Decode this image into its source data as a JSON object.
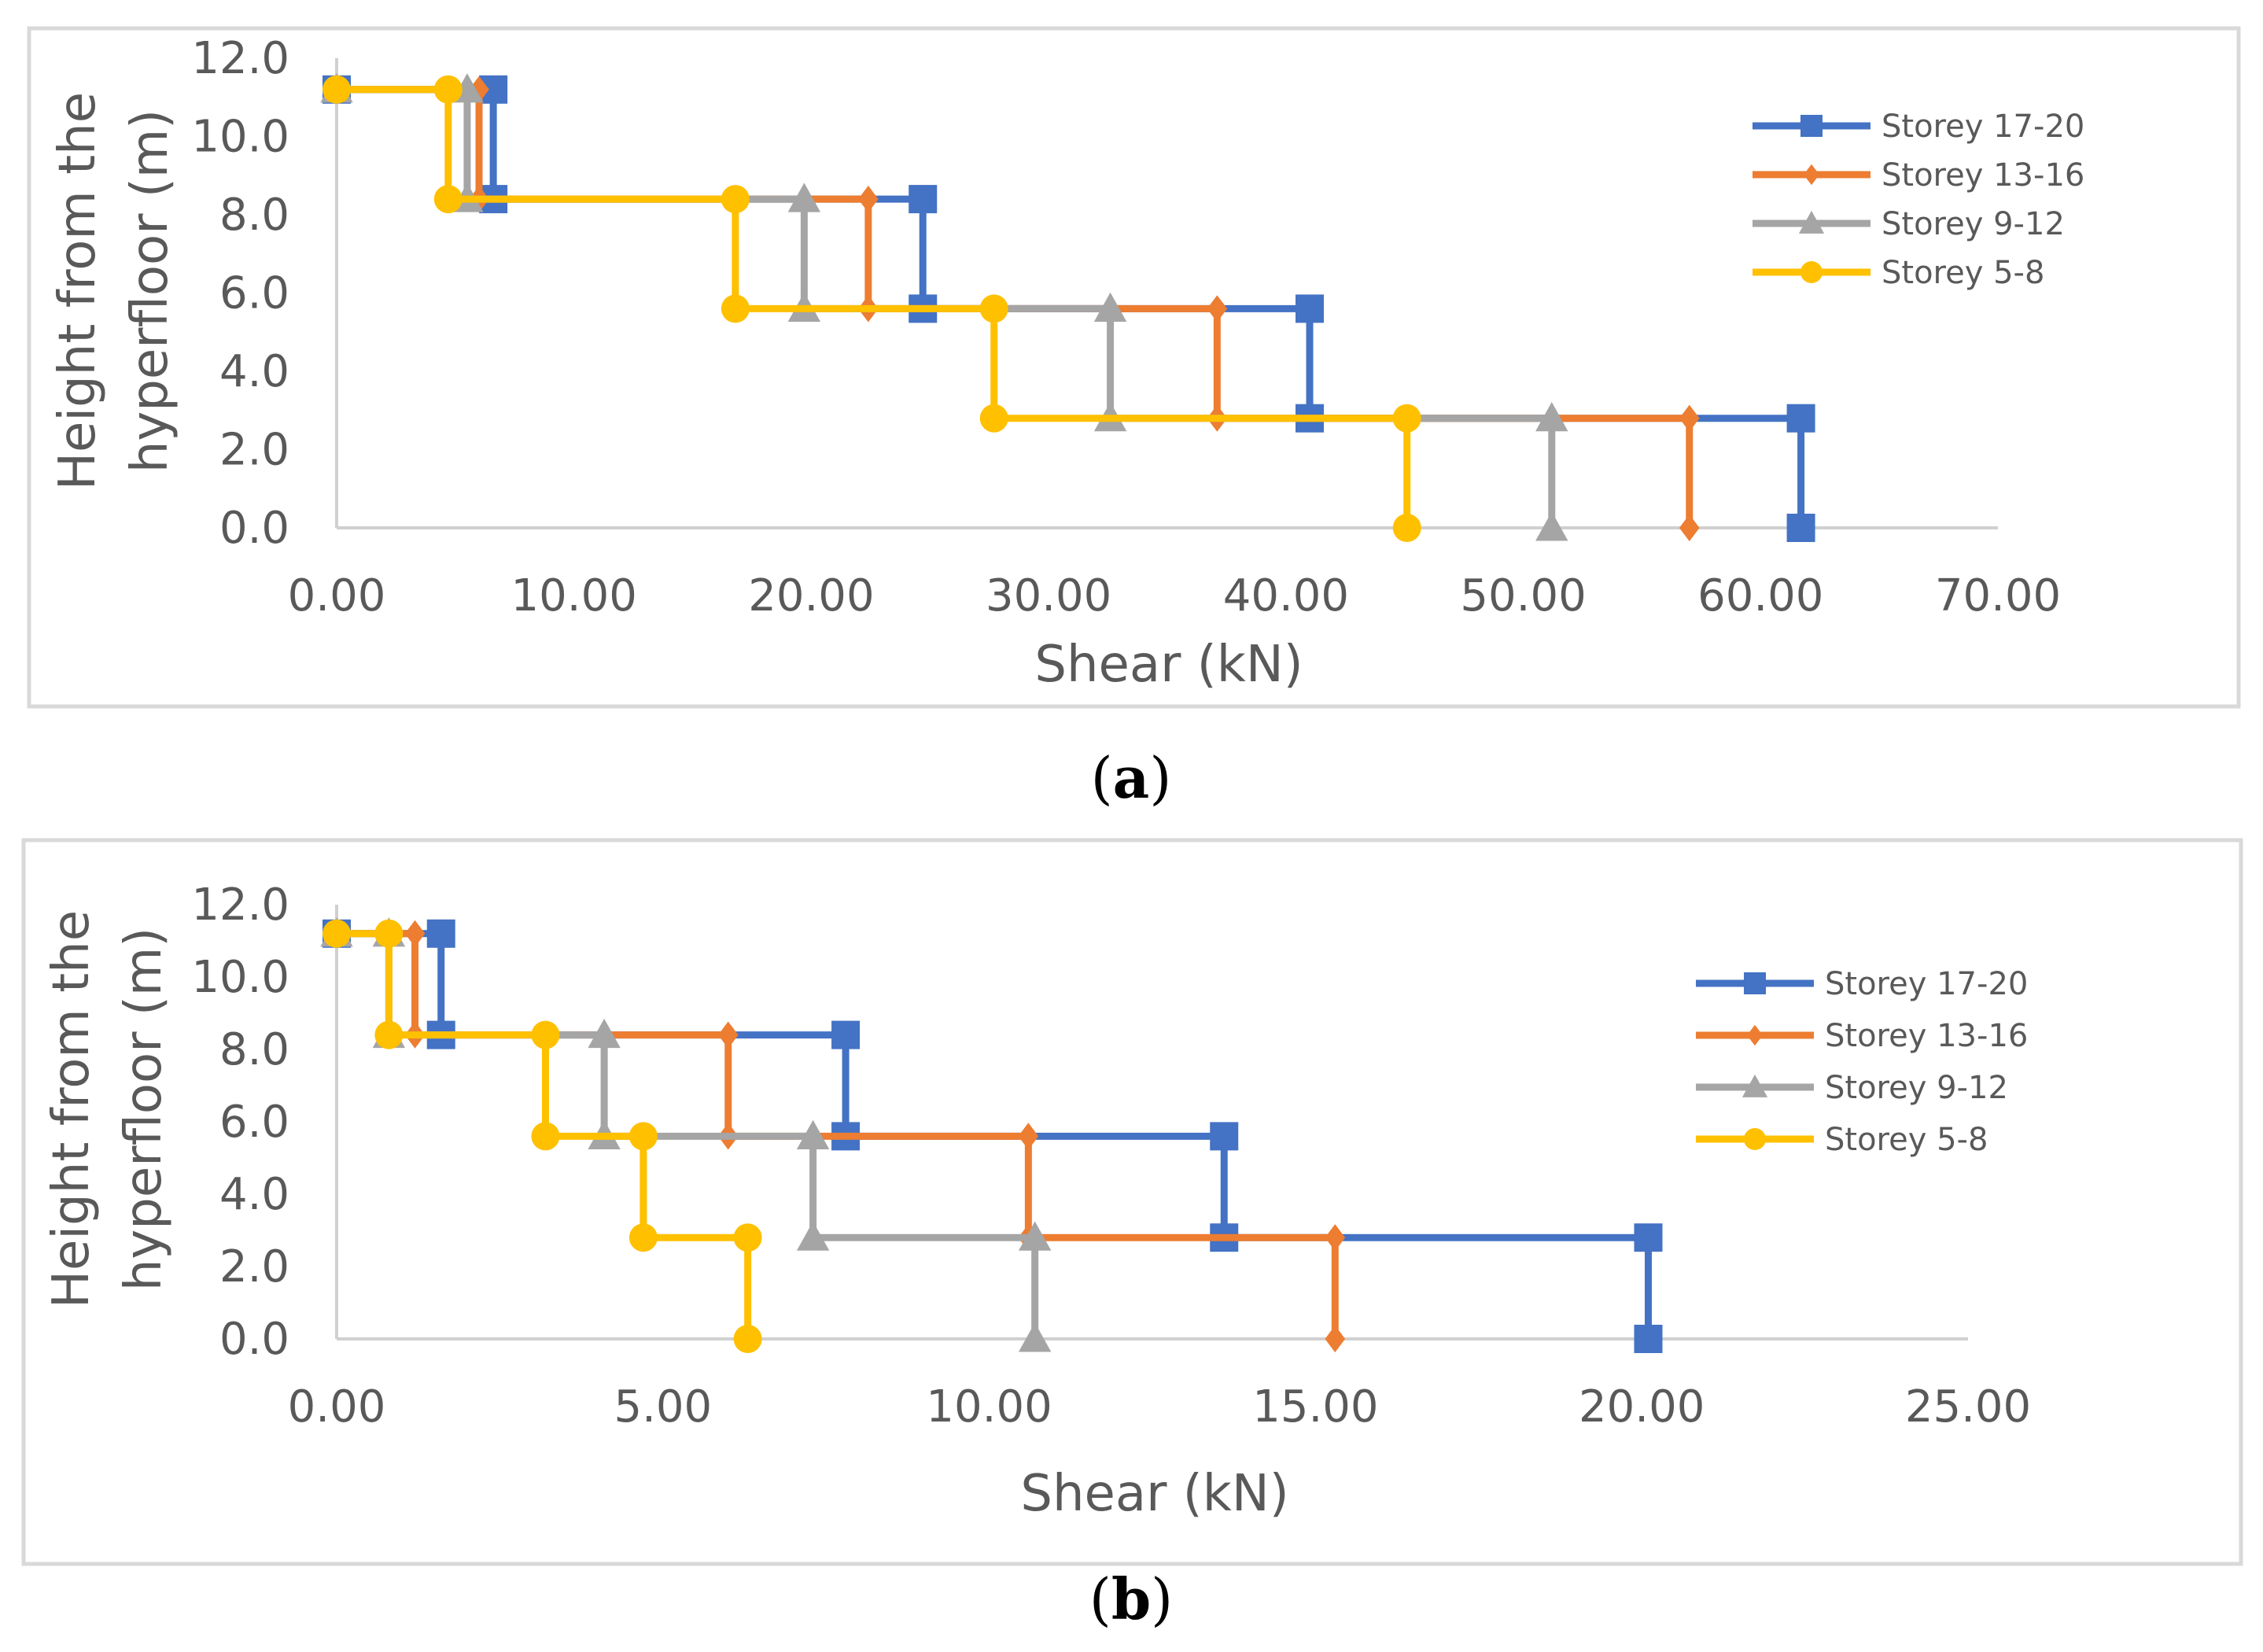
{
  "chart_data": [
    {
      "type": "line",
      "caption": "(a)",
      "caption_letter": "a",
      "xlabel": "Shear (kN)",
      "ylabel_line1": "Height from the",
      "ylabel_line2": "hyperfloor (m)",
      "xlim": [
        0,
        70
      ],
      "ylim": [
        0,
        12
      ],
      "xticks": [
        0,
        10,
        20,
        30,
        40,
        50,
        60,
        70
      ],
      "xtick_labels": [
        "0.00",
        "10.00",
        "20.00",
        "30.00",
        "40.00",
        "50.00",
        "60.00",
        "70.00"
      ],
      "yticks": [
        0,
        2,
        4,
        6,
        8,
        10,
        12
      ],
      "ytick_labels": [
        "0.0",
        "2.0",
        "4.0",
        "6.0",
        "8.0",
        "10.0",
        "12.0"
      ],
      "legend_position": "right",
      "series": [
        {
          "name": "Storey 17-20",
          "color": "#4472c4",
          "marker": "square",
          "points": [
            [
              0,
              11.2
            ],
            [
              6.6,
              11.2
            ],
            [
              6.6,
              8.4
            ],
            [
              24.7,
              8.4
            ],
            [
              24.7,
              5.6
            ],
            [
              41.0,
              5.6
            ],
            [
              41.0,
              2.8
            ],
            [
              61.7,
              2.8
            ],
            [
              61.7,
              0
            ]
          ]
        },
        {
          "name": "Storey 13-16",
          "color": "#ed7d31",
          "marker": "diamond",
          "points": [
            [
              0,
              11.2
            ],
            [
              6.0,
              11.2
            ],
            [
              6.0,
              8.4
            ],
            [
              22.4,
              8.4
            ],
            [
              22.4,
              5.6
            ],
            [
              37.1,
              5.6
            ],
            [
              37.1,
              2.8
            ],
            [
              57.0,
              2.8
            ],
            [
              57.0,
              0
            ]
          ]
        },
        {
          "name": "Storey 9-12",
          "color": "#a5a5a5",
          "marker": "triangle",
          "points": [
            [
              0,
              11.2
            ],
            [
              5.5,
              11.2
            ],
            [
              5.5,
              8.4
            ],
            [
              19.7,
              8.4
            ],
            [
              19.7,
              5.6
            ],
            [
              32.6,
              5.6
            ],
            [
              32.6,
              2.8
            ],
            [
              51.2,
              2.8
            ],
            [
              51.2,
              0
            ]
          ]
        },
        {
          "name": "Storey 5-8",
          "color": "#ffc000",
          "marker": "circle",
          "points": [
            [
              0,
              11.2
            ],
            [
              4.7,
              11.2
            ],
            [
              4.7,
              8.4
            ],
            [
              16.8,
              8.4
            ],
            [
              16.8,
              5.6
            ],
            [
              27.7,
              5.6
            ],
            [
              27.7,
              2.8
            ],
            [
              45.1,
              2.8
            ],
            [
              45.1,
              0
            ]
          ]
        }
      ]
    },
    {
      "type": "line",
      "caption": "(b)",
      "caption_letter": "b",
      "xlabel": "Shear (kN)",
      "ylabel_line1": "Height from the",
      "ylabel_line2": "hyperfloor (m)",
      "xlim": [
        0,
        25
      ],
      "ylim": [
        0,
        12
      ],
      "xticks": [
        0,
        5,
        10,
        15,
        20,
        25
      ],
      "xtick_labels": [
        "0.00",
        "5.00",
        "10.00",
        "15.00",
        "20.00",
        "25.00"
      ],
      "yticks": [
        0,
        2,
        4,
        6,
        8,
        10,
        12
      ],
      "ytick_labels": [
        "0.0",
        "2.0",
        "4.0",
        "6.0",
        "8.0",
        "10.0",
        "12.0"
      ],
      "legend_position": "right",
      "series": [
        {
          "name": "Storey 17-20",
          "color": "#4472c4",
          "marker": "square",
          "points": [
            [
              0,
              11.2
            ],
            [
              1.6,
              11.2
            ],
            [
              1.6,
              8.4
            ],
            [
              7.8,
              8.4
            ],
            [
              7.8,
              5.6
            ],
            [
              13.6,
              5.6
            ],
            [
              13.6,
              2.8
            ],
            [
              20.1,
              2.8
            ],
            [
              20.1,
              0
            ]
          ]
        },
        {
          "name": "Storey 13-16",
          "color": "#ed7d31",
          "marker": "diamond",
          "points": [
            [
              0,
              11.2
            ],
            [
              1.2,
              11.2
            ],
            [
              1.2,
              8.4
            ],
            [
              6.0,
              8.4
            ],
            [
              6.0,
              5.6
            ],
            [
              10.6,
              5.6
            ],
            [
              10.6,
              2.8
            ],
            [
              15.3,
              2.8
            ],
            [
              15.3,
              0
            ]
          ]
        },
        {
          "name": "Storey 9-12",
          "color": "#a5a5a5",
          "marker": "triangle",
          "points": [
            [
              0,
              11.2
            ],
            [
              0.8,
              11.2
            ],
            [
              0.8,
              8.4
            ],
            [
              4.1,
              8.4
            ],
            [
              4.1,
              5.6
            ],
            [
              7.3,
              5.6
            ],
            [
              7.3,
              2.8
            ],
            [
              10.7,
              2.8
            ],
            [
              10.7,
              0
            ]
          ]
        },
        {
          "name": "Storey 5-8",
          "color": "#ffc000",
          "marker": "circle",
          "points": [
            [
              0,
              11.2
            ],
            [
              0.8,
              11.2
            ],
            [
              0.8,
              8.4
            ],
            [
              3.2,
              8.4
            ],
            [
              3.2,
              5.6
            ],
            [
              4.7,
              5.6
            ],
            [
              4.7,
              2.8
            ],
            [
              6.3,
              2.8
            ],
            [
              6.3,
              0
            ]
          ]
        }
      ]
    }
  ]
}
